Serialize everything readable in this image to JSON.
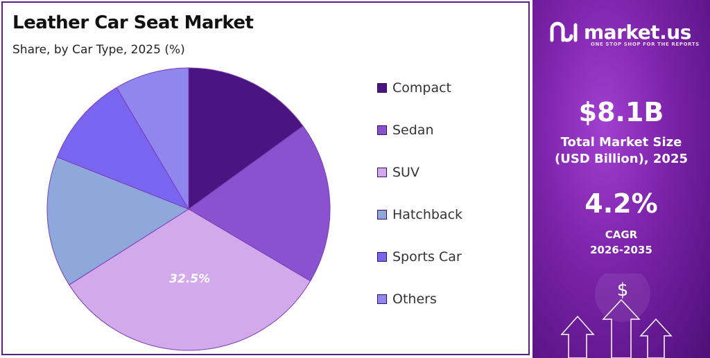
{
  "chart_data": {
    "type": "pie",
    "title": "Leather Car Seat Market",
    "subtitle": "Share, by Car Type, 2025 (%)",
    "categories": [
      "Compact",
      "Sedan",
      "SUV",
      "Hatchback",
      "Sports Car",
      "Others"
    ],
    "values": [
      15.0,
      18.5,
      32.5,
      15.0,
      10.5,
      8.5
    ],
    "data_labels": [
      "",
      "",
      "32.5%",
      "",
      "",
      ""
    ],
    "colors": [
      "#4a1580",
      "#8a52cf",
      "#d2aaec",
      "#8fa8dc",
      "#7a65f0",
      "#8f87ef"
    ],
    "start_angle_deg": 0,
    "direction": "clockwise",
    "legend_position": "right"
  },
  "brand": {
    "name": "market.us",
    "tagline": "ONE STOP SHOP FOR THE REPORTS",
    "logo_icon": "market-us-logo-icon"
  },
  "stats": {
    "market_size_value": "$8.1B",
    "market_size_label_line1": "Total Market Size",
    "market_size_label_line2": "(USD Billion), 2025",
    "cagr_value": "4.2%",
    "cagr_label_line1": "CAGR",
    "cagr_label_line2": "2026-2035"
  },
  "decoration": {
    "icon": "growth-arrows-icon",
    "currency_symbol": "$"
  }
}
